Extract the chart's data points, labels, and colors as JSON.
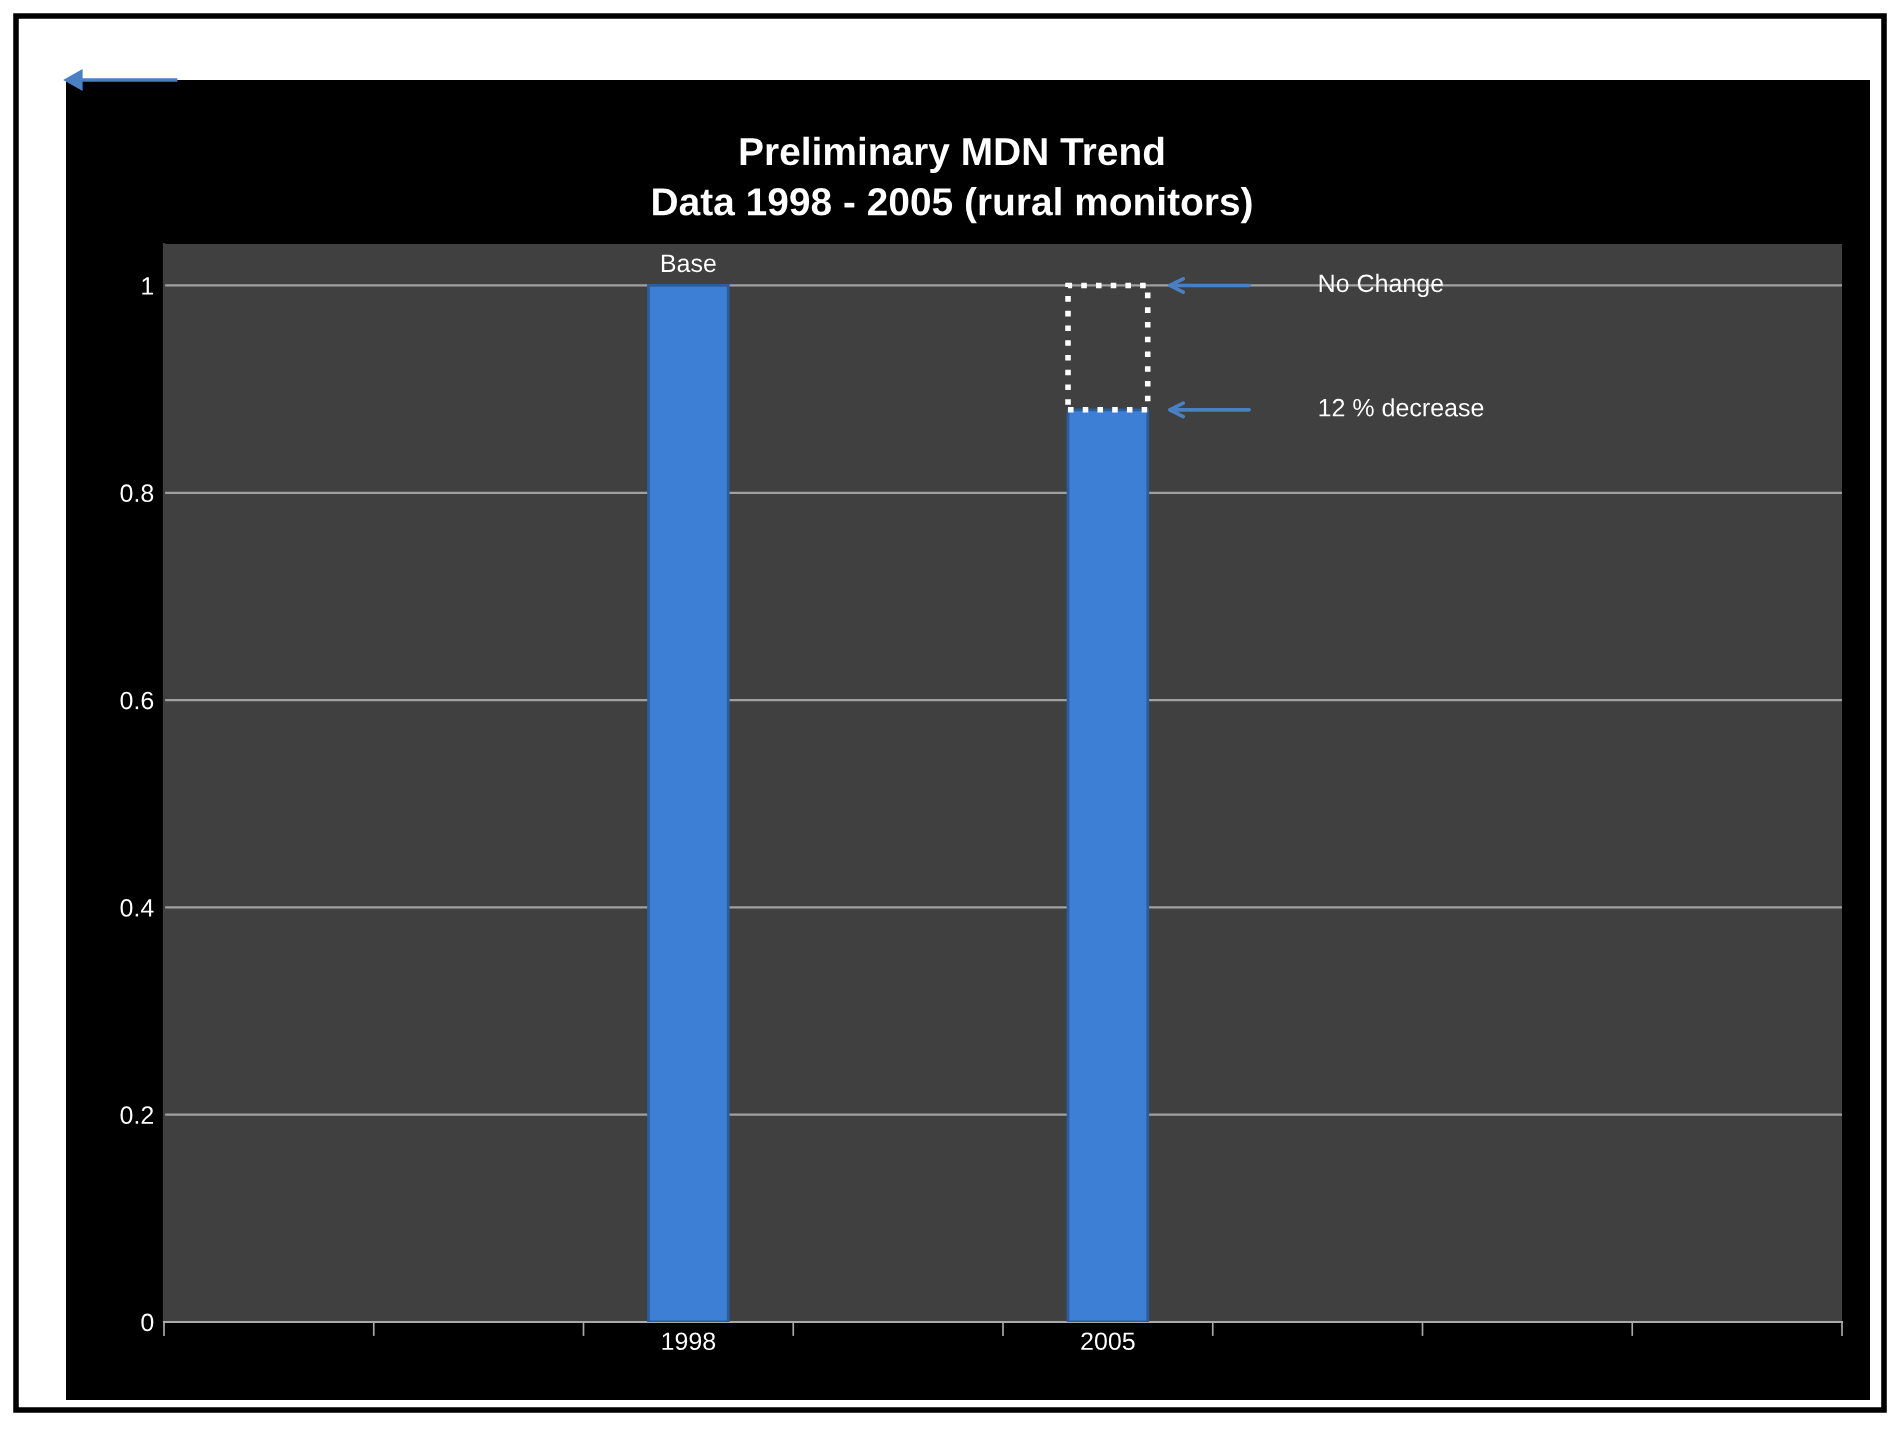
{
  "chart_data": {
    "type": "bar",
    "title": "Preliminary MDN Trend\nData 1998 - 2005 (rural monitors)",
    "categories": [
      null,
      null,
      "1998",
      null,
      "2005",
      null,
      null,
      null
    ],
    "series": [
      {
        "color": "#3d7fd4",
        "values": [
          null,
          null,
          1,
          null,
          0.88,
          null,
          null,
          null
        ]
      },
      {
        "color": "#ffffff",
        "line_style": "dotted",
        "values": [
          null,
          null,
          null,
          null,
          0.12,
          null,
          null,
          null
        ]
      }
    ],
    "stacked": true,
    "ylim": [
      0,
      1.04
    ],
    "yticks": [
      0,
      0.2,
      0.4,
      0.6,
      0.8,
      1
    ],
    "grid": "y",
    "legend": false,
    "annotations": [
      {
        "text": "Base",
        "x": "1998",
        "y": 1
      },
      "No Change",
      "12 % decrease"
    ]
  }
}
